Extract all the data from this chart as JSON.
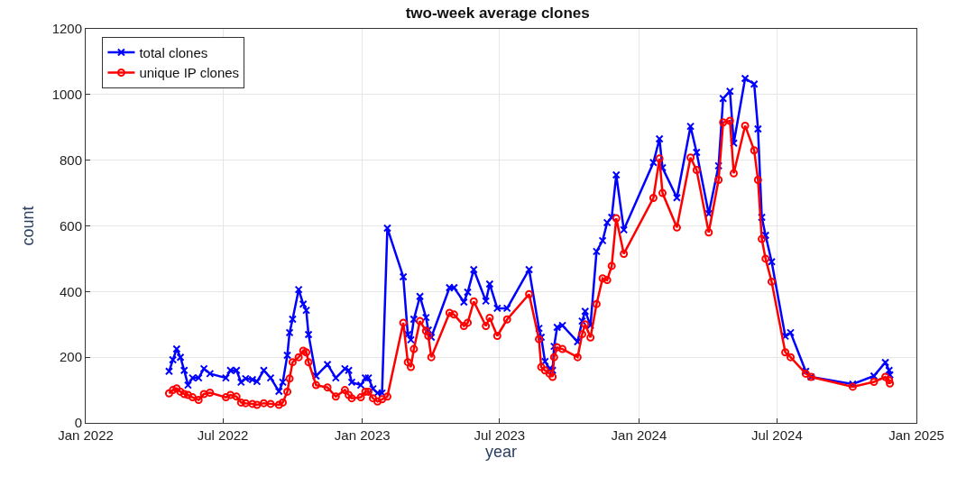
{
  "chart_data": {
    "type": "line",
    "title": "two-week average clones",
    "xlabel": "year",
    "ylabel": "count",
    "x": [
      "2022-04-21",
      "2022-04-26",
      "2022-05-01",
      "2022-05-06",
      "2022-05-11",
      "2022-05-16",
      "2022-05-22",
      "2022-05-30",
      "2022-06-06",
      "2022-06-14",
      "2022-07-05",
      "2022-07-11",
      "2022-07-19",
      "2022-07-25",
      "2022-07-31",
      "2022-08-09",
      "2022-08-15",
      "2022-08-24",
      "2022-09-02",
      "2022-09-13",
      "2022-09-18",
      "2022-09-24",
      "2022-09-27",
      "2022-10-01",
      "2022-10-09",
      "2022-10-15",
      "2022-10-19",
      "2022-10-22",
      "2022-11-01",
      "2022-11-16",
      "2022-11-27",
      "2022-12-09",
      "2022-12-14",
      "2022-12-18",
      "2022-12-30",
      "2023-01-05",
      "2023-01-09",
      "2023-01-15",
      "2023-01-21",
      "2023-01-27",
      "2023-02-03",
      "2023-02-24",
      "2023-03-02",
      "2023-03-06",
      "2023-03-10",
      "2023-03-18",
      "2023-03-26",
      "2023-03-29",
      "2023-04-02",
      "2023-04-26",
      "2023-05-02",
      "2023-05-15",
      "2023-05-20",
      "2023-05-28",
      "2023-06-13",
      "2023-06-18",
      "2023-06-28",
      "2023-07-11",
      "2023-08-09",
      "2023-08-22",
      "2023-08-25",
      "2023-08-30",
      "2023-09-05",
      "2023-09-09",
      "2023-09-11",
      "2023-09-15",
      "2023-09-22",
      "2023-10-12",
      "2023-10-18",
      "2023-10-22",
      "2023-10-29",
      "2023-11-06",
      "2023-11-14",
      "2023-11-20",
      "2023-11-26",
      "2023-12-02",
      "2023-12-12",
      "2024-01-20",
      "2024-01-28",
      "2024-02-01",
      "2024-02-20",
      "2024-03-09",
      "2024-03-17",
      "2024-04-02",
      "2024-04-15",
      "2024-04-21",
      "2024-04-30",
      "2024-05-05",
      "2024-05-20",
      "2024-06-01",
      "2024-06-06",
      "2024-06-11",
      "2024-06-16",
      "2024-06-24",
      "2024-07-12",
      "2024-07-19",
      "2024-08-08",
      "2024-08-15",
      "2024-10-09",
      "2024-11-06",
      "2024-11-21",
      "2024-11-26",
      "2024-11-27"
    ],
    "series": [
      {
        "name": "total clones",
        "color": "#0000ff",
        "marker": "cross",
        "values": [
          157,
          192,
          225,
          200,
          160,
          115,
          137,
          137,
          165,
          150,
          137,
          160,
          160,
          124,
          135,
          132,
          126,
          160,
          137,
          96,
          124,
          206,
          275,
          316,
          406,
          362,
          343,
          269,
          143,
          178,
          137,
          165,
          160,
          124,
          115,
          137,
          137,
          104,
          91,
          91,
          593,
          445,
          269,
          253,
          316,
          385,
          321,
          283,
          261,
          412,
          412,
          368,
          398,
          467,
          371,
          423,
          349,
          349,
          467,
          288,
          261,
          187,
          165,
          160,
          233,
          291,
          297,
          247,
          310,
          340,
          297,
          522,
          555,
          610,
          626,
          755,
          588,
          793,
          865,
          777,
          686,
          903,
          824,
          637,
          783,
          988,
          1010,
          852,
          1049,
          1032,
          895,
          626,
          571,
          491,
          264,
          275,
          157,
          140,
          118,
          143,
          184,
          160,
          146
        ]
      },
      {
        "name": "unique IP clones",
        "color": "#ff0000",
        "marker": "circle",
        "values": [
          90,
          100,
          105,
          95,
          88,
          85,
          78,
          70,
          88,
          92,
          78,
          85,
          80,
          62,
          60,
          58,
          55,
          60,
          58,
          55,
          62,
          95,
          135,
          185,
          200,
          220,
          215,
          185,
          115,
          108,
          80,
          100,
          85,
          75,
          78,
          95,
          95,
          75,
          65,
          72,
          80,
          305,
          185,
          170,
          225,
          310,
          280,
          265,
          200,
          335,
          330,
          295,
          305,
          370,
          295,
          320,
          265,
          315,
          392,
          255,
          170,
          160,
          150,
          140,
          200,
          230,
          225,
          200,
          270,
          300,
          260,
          362,
          440,
          435,
          478,
          623,
          515,
          685,
          805,
          700,
          595,
          808,
          770,
          580,
          740,
          915,
          920,
          760,
          905,
          830,
          740,
          560,
          500,
          430,
          215,
          200,
          150,
          140,
          110,
          125,
          140,
          130,
          120
        ]
      }
    ],
    "xlim": [
      "2022-01-01",
      "2025-01-01"
    ],
    "xticks": [
      {
        "value": "2022-01-01",
        "label": "Jan 2022"
      },
      {
        "value": "2022-07-01",
        "label": "Jul 2022"
      },
      {
        "value": "2023-01-01",
        "label": "Jan 2023"
      },
      {
        "value": "2023-07-01",
        "label": "Jul 2023"
      },
      {
        "value": "2024-01-01",
        "label": "Jan 2024"
      },
      {
        "value": "2024-07-01",
        "label": "Jul 2024"
      },
      {
        "value": "2025-01-01",
        "label": "Jan 2025"
      }
    ],
    "ylim": [
      0,
      1200
    ],
    "yticks": [
      0,
      200,
      400,
      600,
      800,
      1000,
      1200
    ],
    "grid": true,
    "legend": "top left",
    "line_style": "solid"
  }
}
